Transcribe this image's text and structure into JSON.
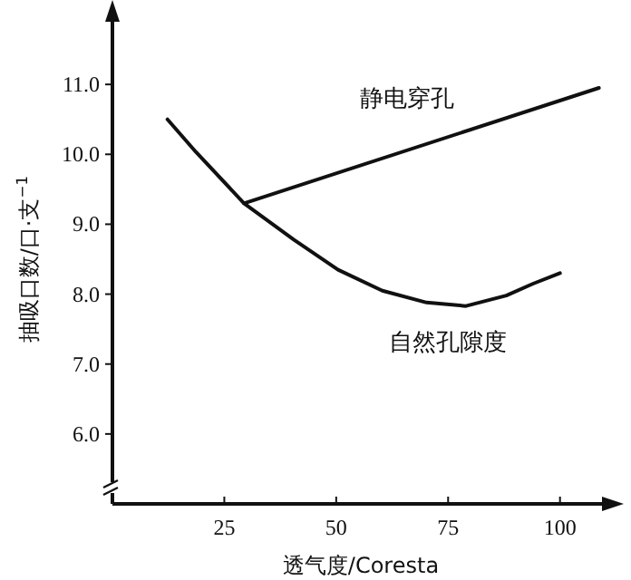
{
  "chart_data": {
    "type": "line",
    "xlabel": "透气度/Coresta",
    "ylabel": "抽吸口数/口·支$^{−1}$",
    "xlim": [
      0,
      111
    ],
    "xticks": [
      25,
      50,
      75,
      100
    ],
    "ylim": [
      5,
      12
    ],
    "yticks": [
      {
        "value": 6,
        "label": "6.0"
      },
      {
        "value": 7,
        "label": "7.0"
      },
      {
        "value": 8,
        "label": "8.0"
      },
      {
        "value": 9,
        "label": "9.0"
      },
      {
        "value": 10,
        "label": "10.0"
      },
      {
        "value": 11,
        "label": "11.0"
      }
    ],
    "grid": false,
    "legend": false,
    "marker": "none",
    "line_style": "solid",
    "series": [
      {
        "name": "静电穿孔",
        "color": "#111111",
        "x": [
          29.4,
          108.7
        ],
        "values": [
          9.3,
          10.95
        ]
      },
      {
        "name": "自然孔隙度",
        "color": "#111111",
        "x": [
          12.3,
          18.7,
          29.4,
          40.5,
          50.4,
          60.3,
          70.2,
          79,
          88,
          94,
          100
        ],
        "values": [
          10.5,
          10.03,
          9.3,
          8.78,
          8.35,
          8.05,
          7.88,
          7.83,
          7.98,
          8.15,
          8.3
        ]
      }
    ]
  }
}
